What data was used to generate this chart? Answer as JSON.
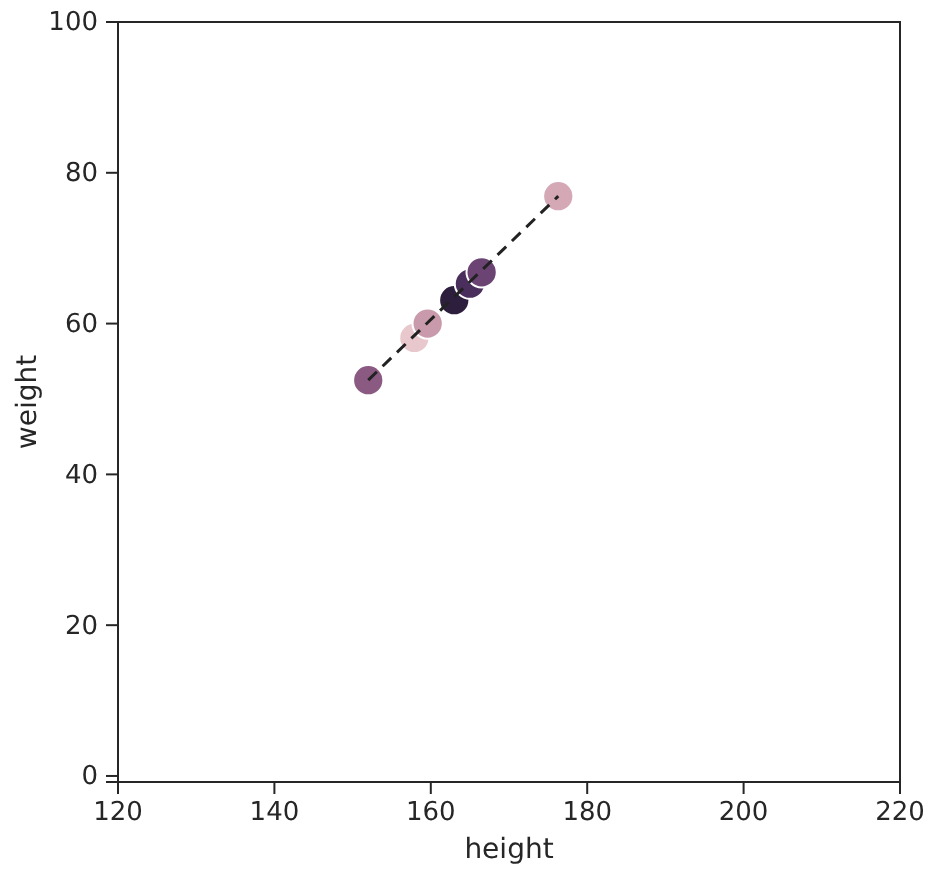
{
  "chart_data": {
    "type": "scatter",
    "xlabel": "height",
    "ylabel": "weight",
    "xlim": [
      120,
      220
    ],
    "ylim": [
      -0.8,
      100
    ],
    "xticks": [
      120,
      140,
      160,
      180,
      200,
      220
    ],
    "yticks": [
      0,
      20,
      40,
      60,
      80,
      100
    ],
    "grid": false,
    "series": [
      {
        "marker": "circle",
        "x": [
          152.0,
          157.9,
          159.6,
          163.0,
          165.0,
          166.5,
          176.3
        ],
        "values": [
          52.5,
          58.1,
          60.0,
          63.1,
          65.3,
          66.8,
          76.9
        ],
        "colors": [
          "#8a5a82",
          "#e8c8cc",
          "#c99aab",
          "#2d1e3e",
          "#4a2f5c",
          "#6b4473",
          "#d4a9b5"
        ]
      },
      {
        "type": "line",
        "line_style": "dashed",
        "marker": "none",
        "color": "#222222",
        "x": [
          152.0,
          176.3
        ],
        "values": [
          52.5,
          76.9
        ]
      }
    ]
  }
}
